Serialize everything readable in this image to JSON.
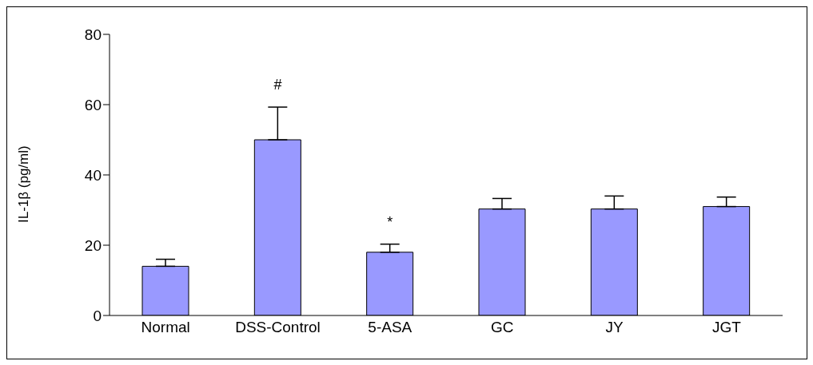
{
  "chart_data": {
    "type": "bar",
    "ylabel": "IL-1β (pg/ml)",
    "categories": [
      "Normal",
      "DSS-Control",
      "5-ASA",
      "GC",
      "JY",
      "JGT"
    ],
    "values": [
      14,
      50,
      18,
      30.3,
      30.3,
      31
    ],
    "errors": [
      [
        14,
        16
      ],
      [
        50,
        59.3
      ],
      [
        18,
        20.3
      ],
      [
        30.3,
        33.3
      ],
      [
        30.3,
        34
      ],
      [
        31,
        33.7
      ]
    ],
    "color": "#9999ff",
    "ylim": [
      0,
      80
    ],
    "yticks": [
      0,
      20,
      40,
      60,
      80
    ],
    "grid": false,
    "legend": false,
    "annotations": [
      {
        "text": "#",
        "x": "DSS-Control",
        "y": 59.3
      },
      {
        "text": "*",
        "x": "5-ASA",
        "y": 20.3
      }
    ]
  }
}
